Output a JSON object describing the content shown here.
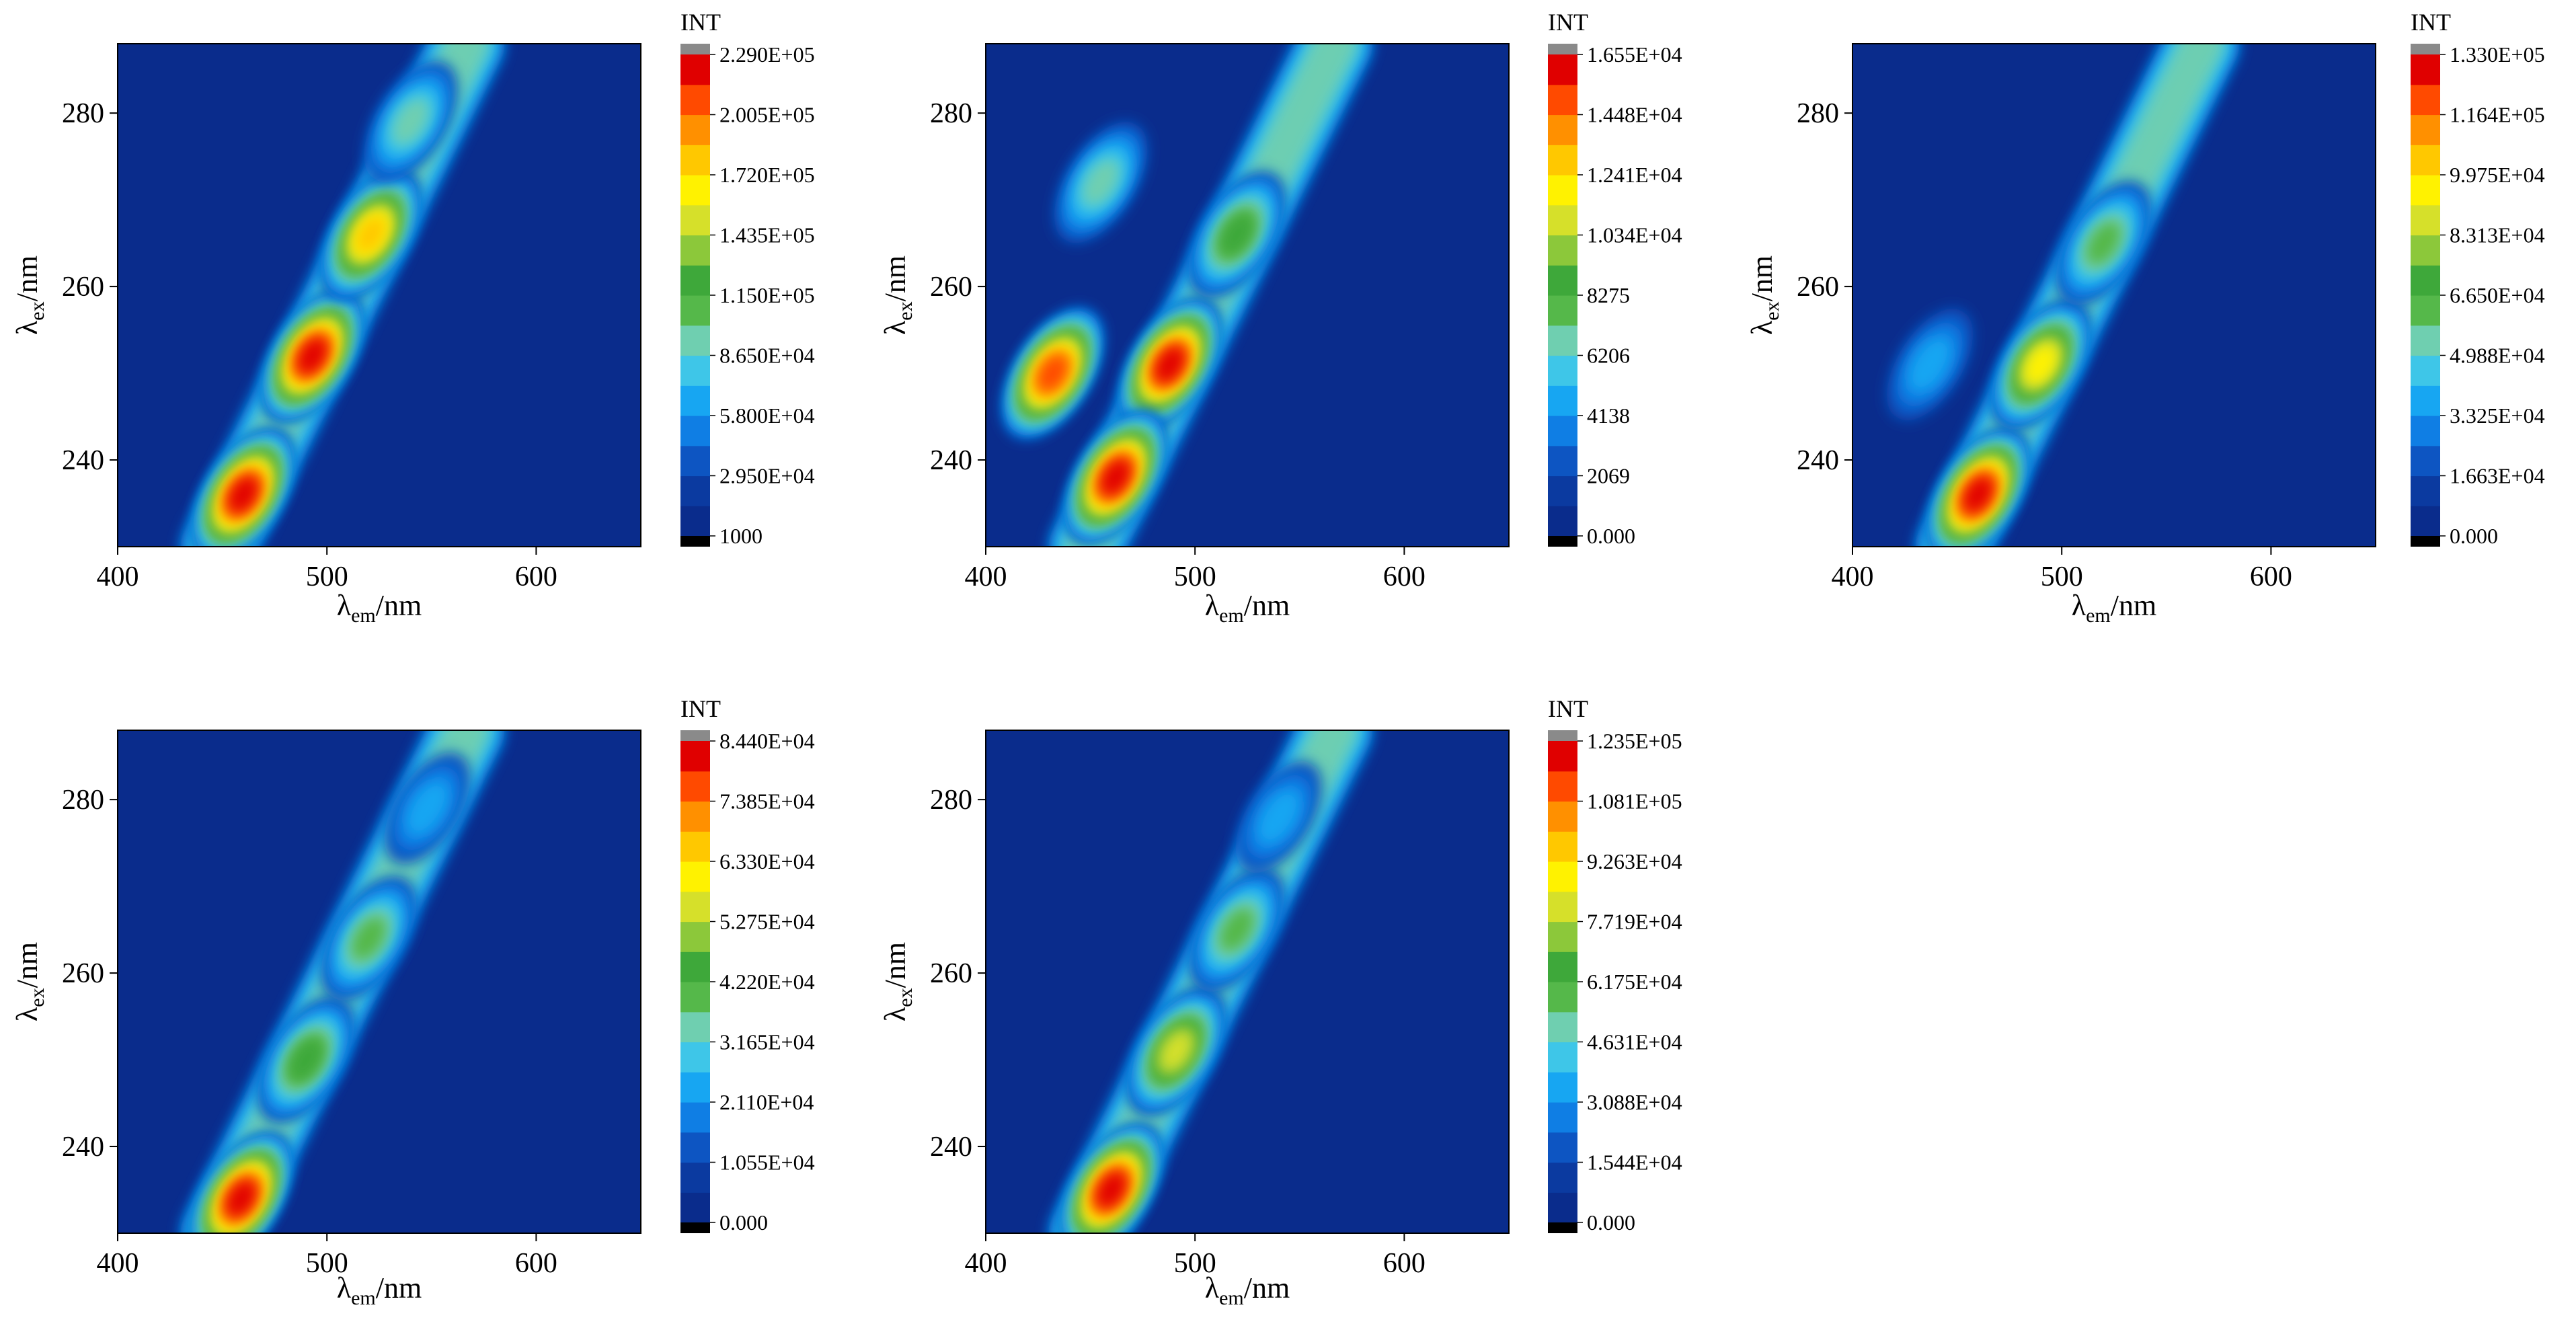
{
  "chart_data": [
    {
      "type": "heatmap",
      "title": "",
      "xlabel": "λem/nm",
      "ylabel": "λex/nm",
      "xlabel_main": "λ",
      "xlabel_sub": "em",
      "xlabel_unit": "/nm",
      "ylabel_main": "λ",
      "ylabel_sub": "ex",
      "ylabel_unit": "/nm",
      "xlim": [
        400,
        650
      ],
      "ylim": [
        230,
        288
      ],
      "x_ticks": [
        "400",
        "500",
        "600"
      ],
      "y_ticks": [
        "240",
        "260",
        "280"
      ],
      "colorbar_title": "INT",
      "colorbar_ticks": [
        "1000",
        "2.950E+04",
        "5.800E+04",
        "8.650E+04",
        "1.150E+05",
        "1.435E+05",
        "1.720E+05",
        "2.005E+05",
        "2.290E+05"
      ],
      "peaks": [
        {
          "x": 460,
          "y": 236,
          "value": 229000.0
        },
        {
          "x": 493,
          "y": 252,
          "value": 229000.0
        },
        {
          "x": 521,
          "y": 266,
          "value": 190000.0
        },
        {
          "x": 540,
          "y": 279,
          "value": 90000.0
        }
      ]
    },
    {
      "type": "heatmap",
      "title": "",
      "xlabel": "λem/nm",
      "ylabel": "λex/nm",
      "xlabel_main": "λ",
      "xlabel_sub": "em",
      "xlabel_unit": "/nm",
      "ylabel_main": "λ",
      "ylabel_sub": "ex",
      "ylabel_unit": "/nm",
      "xlim": [
        400,
        650
      ],
      "ylim": [
        230,
        288
      ],
      "x_ticks": [
        "400",
        "500",
        "600"
      ],
      "y_ticks": [
        "240",
        "260",
        "280"
      ],
      "colorbar_title": "INT",
      "colorbar_ticks": [
        "0.000",
        "2069",
        "4138",
        "6206",
        "8275",
        "1.034E+04",
        "1.241E+04",
        "1.448E+04",
        "1.655E+04"
      ],
      "peaks": [
        {
          "x": 432,
          "y": 250,
          "value": 15500.0
        },
        {
          "x": 488,
          "y": 251,
          "value": 16500.0
        },
        {
          "x": 462,
          "y": 238,
          "value": 16000.0
        },
        {
          "x": 455,
          "y": 272,
          "value": 7000.0
        },
        {
          "x": 520,
          "y": 266,
          "value": 9000.0
        }
      ]
    },
    {
      "type": "heatmap",
      "title": "",
      "xlabel": "λem/nm",
      "ylabel": "λex/nm",
      "xlabel_main": "λ",
      "xlabel_sub": "em",
      "xlabel_unit": "/nm",
      "ylabel_main": "λ",
      "ylabel_sub": "ex",
      "ylabel_unit": "/nm",
      "xlim": [
        400,
        650
      ],
      "ylim": [
        230,
        288
      ],
      "x_ticks": [
        "400",
        "500",
        "600"
      ],
      "y_ticks": [
        "240",
        "260",
        "280"
      ],
      "colorbar_title": "INT",
      "colorbar_ticks": [
        "0.000",
        "1.663E+04",
        "3.325E+04",
        "4.988E+04",
        "6.650E+04",
        "8.313E+04",
        "9.975E+04",
        "1.164E+05",
        "1.330E+05"
      ],
      "peaks": [
        {
          "x": 460,
          "y": 236,
          "value": 133000.0
        },
        {
          "x": 490,
          "y": 251,
          "value": 100000.0
        },
        {
          "x": 520,
          "y": 265,
          "value": 65000.0
        },
        {
          "x": 437,
          "y": 251,
          "value": 38000.0
        }
      ]
    },
    {
      "type": "heatmap",
      "title": "",
      "xlabel": "λem/nm",
      "ylabel": "λex/nm",
      "xlabel_main": "λ",
      "xlabel_sub": "em",
      "xlabel_unit": "/nm",
      "ylabel_main": "λ",
      "ylabel_sub": "ex",
      "ylabel_unit": "/nm",
      "xlim": [
        400,
        650
      ],
      "ylim": [
        230,
        288
      ],
      "x_ticks": [
        "400",
        "500",
        "600"
      ],
      "y_ticks": [
        "240",
        "260",
        "280"
      ],
      "colorbar_title": "INT",
      "colorbar_ticks": [
        "0.000",
        "1.055E+04",
        "2.110E+04",
        "3.165E+04",
        "4.220E+04",
        "5.275E+04",
        "6.330E+04",
        "7.385E+04",
        "8.440E+04"
      ],
      "peaks": [
        {
          "x": 459,
          "y": 234,
          "value": 84400.0
        },
        {
          "x": 490,
          "y": 250,
          "value": 44000.0
        },
        {
          "x": 520,
          "y": 264,
          "value": 42000.0
        },
        {
          "x": 548,
          "y": 279,
          "value": 24000.0
        }
      ]
    },
    {
      "type": "heatmap",
      "title": "",
      "xlabel": "λem/nm",
      "ylabel": "λex/nm",
      "xlabel_main": "λ",
      "xlabel_sub": "em",
      "xlabel_unit": "/nm",
      "ylabel_main": "λ",
      "ylabel_sub": "ex",
      "ylabel_unit": "/nm",
      "xlim": [
        400,
        650
      ],
      "ylim": [
        230,
        288
      ],
      "x_ticks": [
        "400",
        "500",
        "600"
      ],
      "y_ticks": [
        "240",
        "260",
        "280"
      ],
      "colorbar_title": "INT",
      "colorbar_ticks": [
        "0.000",
        "1.544E+04",
        "3.088E+04",
        "4.631E+04",
        "6.175E+04",
        "7.719E+04",
        "9.263E+04",
        "1.081E+05",
        "1.235E+05"
      ],
      "peaks": [
        {
          "x": 460,
          "y": 235,
          "value": 123500.0
        },
        {
          "x": 491,
          "y": 251,
          "value": 85000.0
        },
        {
          "x": 520,
          "y": 265,
          "value": 58000.0
        },
        {
          "x": 540,
          "y": 278,
          "value": 32000.0
        }
      ]
    }
  ],
  "palette": [
    "#0a2c8c",
    "#0b3aa0",
    "#0d55c2",
    "#0f7ee4",
    "#17a6f2",
    "#3ec6e8",
    "#6fcfb0",
    "#55b84a",
    "#3ea83a",
    "#8cc83a",
    "#d6e02a",
    "#fff200",
    "#ffc800",
    "#ff9000",
    "#ff4a00",
    "#e00000"
  ],
  "colorbar_over_color": "#8a8a8a",
  "colorbar_under_color": "#000000"
}
